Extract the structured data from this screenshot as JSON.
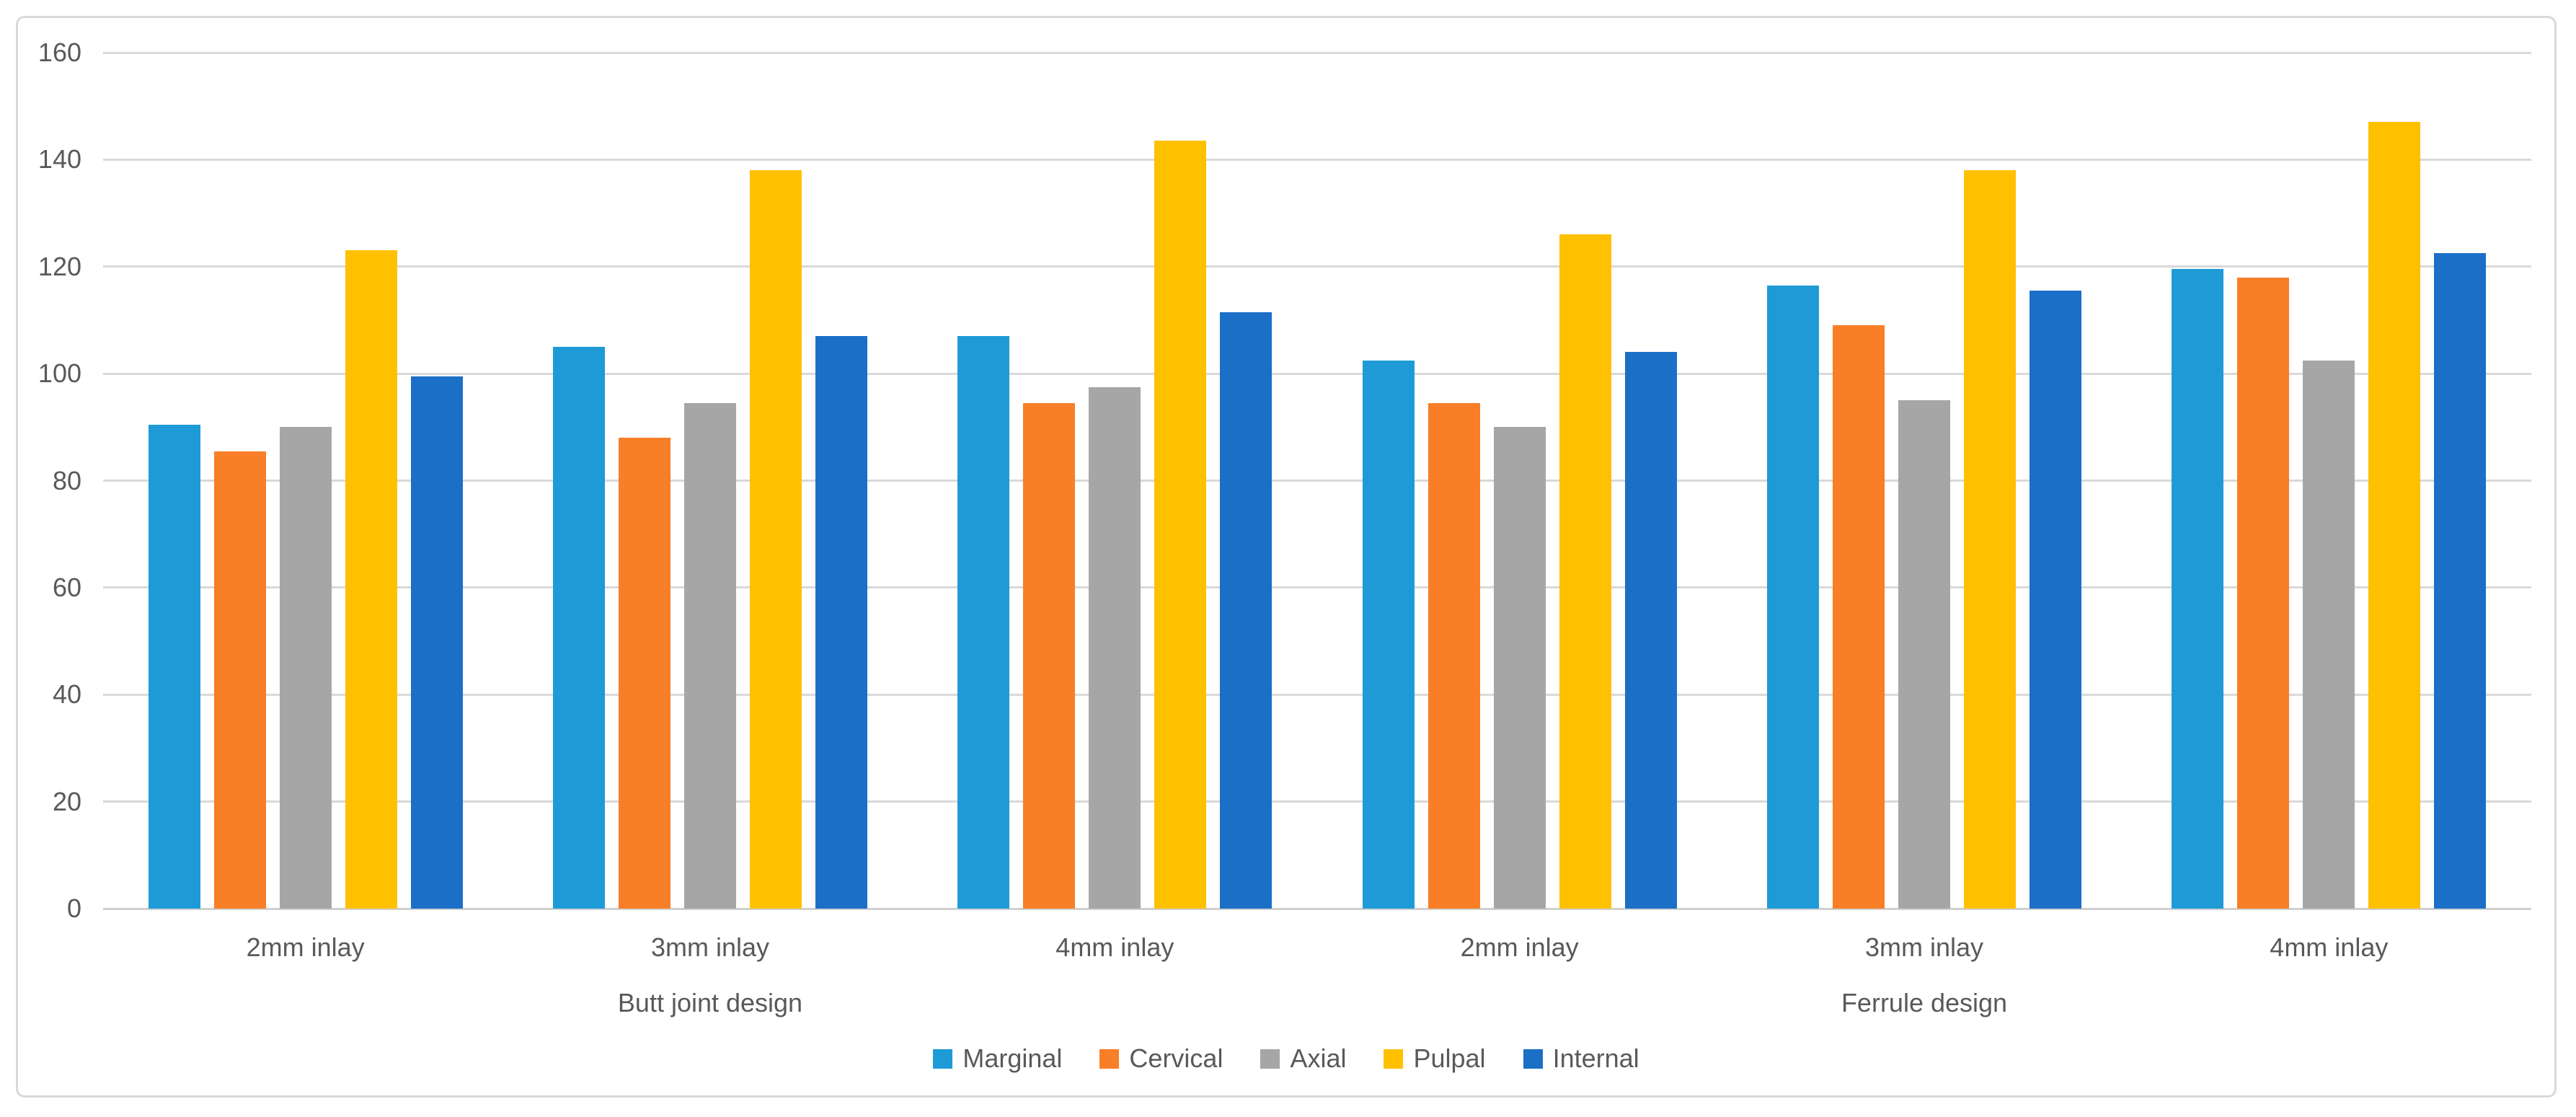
{
  "chart_data": {
    "type": "bar",
    "title": "",
    "xlabel": "",
    "ylabel": "",
    "ylim": [
      0,
      160
    ],
    "yticks": [
      0,
      20,
      40,
      60,
      80,
      100,
      120,
      140,
      160
    ],
    "grid": true,
    "legend_position": "bottom",
    "categories": [
      "2mm inlay",
      "3mm inlay",
      "4mm inlay",
      "2mm inlay",
      "3mm inlay",
      "4mm inlay"
    ],
    "category_groups": [
      {
        "label": "Butt joint design",
        "from": 0,
        "to": 2
      },
      {
        "label": "Ferrule design",
        "from": 3,
        "to": 5
      }
    ],
    "series": [
      {
        "name": "Marginal",
        "color": "#1E9BD7",
        "values": [
          90.5,
          105,
          107,
          102.5,
          116.5,
          119.5
        ]
      },
      {
        "name": "Cervical",
        "color": "#F87E27",
        "values": [
          85.5,
          88,
          94.5,
          94.5,
          109,
          118
        ]
      },
      {
        "name": "Axial",
        "color": "#A6A6A6",
        "values": [
          90,
          94.5,
          97.5,
          90,
          95,
          102.5
        ]
      },
      {
        "name": "Pulpal",
        "color": "#FFC000",
        "values": [
          123,
          138,
          143.5,
          126,
          138,
          147
        ]
      },
      {
        "name": "Internal",
        "color": "#1B6FC6",
        "values": [
          99.5,
          107,
          111.5,
          104,
          115.5,
          122.5
        ]
      }
    ]
  },
  "style": {
    "frame_border_color": "#D9D9D9",
    "gridline_color": "#D9D9D9",
    "axis_line_color": "#D0D0D0",
    "tick_text_color": "#595959",
    "background_color": "#FFFFFF"
  }
}
